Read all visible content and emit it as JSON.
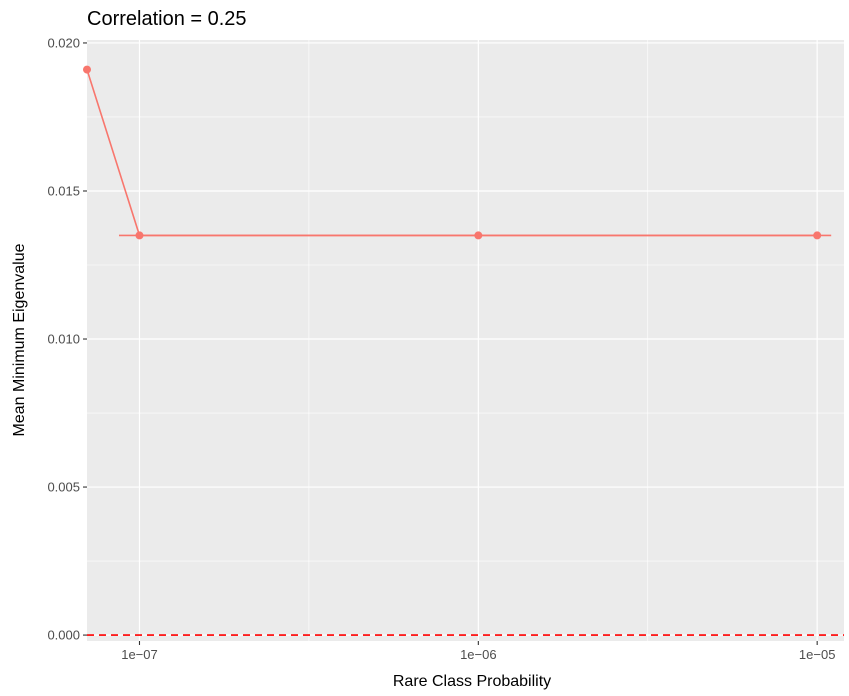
{
  "chart_data": {
    "type": "line",
    "title": "Correlation = 0.25",
    "xlabel": "Rare Class Probability",
    "ylabel": "Mean Minimum Eigenvalue",
    "x_scale": "log10",
    "xlim": [
      7e-08,
      1.2e-05
    ],
    "ylim": [
      -0.0002,
      0.0201
    ],
    "x_ticks": [
      {
        "value": 1e-07,
        "label": "1e−07"
      },
      {
        "value": 1e-06,
        "label": "1e−06"
      },
      {
        "value": 1e-05,
        "label": "1e−05"
      }
    ],
    "y_ticks": [
      {
        "value": 0.0,
        "label": "0.000"
      },
      {
        "value": 0.005,
        "label": "0.005"
      },
      {
        "value": 0.01,
        "label": "0.010"
      },
      {
        "value": 0.015,
        "label": "0.015"
      },
      {
        "value": 0.02,
        "label": "0.020"
      }
    ],
    "series": [
      {
        "x": [
          7e-08,
          1e-07,
          1e-06,
          1e-05
        ],
        "y": [
          0.0191,
          0.0135,
          0.0135,
          0.0135
        ],
        "color": "#F8766D"
      }
    ],
    "error_bar": {
      "xmin": 8.7e-08,
      "xmax": 1.1e-05,
      "y": 0.0135,
      "color": "#F8766D"
    },
    "reference_line": {
      "y": 0.0,
      "style": "dashed",
      "color": "#FF0000"
    },
    "panel_background": "#EBEBEB",
    "grid_color": "#FFFFFF",
    "legend": "none"
  }
}
